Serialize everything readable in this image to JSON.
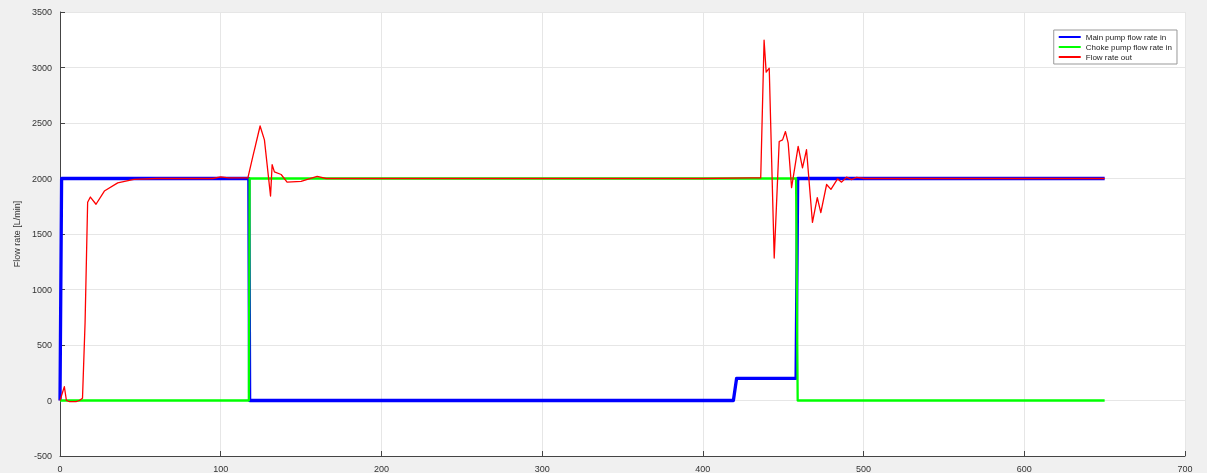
{
  "chart_data": {
    "type": "line",
    "ylabel": "Flow rate [L/min]",
    "xlim": [
      0,
      700
    ],
    "xticks": [
      0,
      100,
      200,
      300,
      400,
      500,
      600,
      700
    ],
    "ylim": [
      -500,
      3500
    ],
    "yticks": [
      -500,
      0,
      500,
      1000,
      1500,
      2000,
      2500,
      3000,
      3500
    ],
    "grid": true,
    "legend": "top right",
    "marker": "none",
    "line_style": "solid",
    "series": [
      {
        "name": "Main pump flow rate in",
        "color": "#0000ff",
        "x": [
          0,
          1,
          117.5,
          118,
          419,
          421,
          458,
          459,
          650
        ],
        "values": [
          0,
          2000,
          2000,
          0,
          0,
          200,
          200,
          2000,
          2000
        ]
      },
      {
        "name": "Choke pump flow rate in",
        "color": "#00ff00",
        "x": [
          0,
          117.5,
          118,
          458,
          459,
          650
        ],
        "values": [
          0,
          0,
          2000,
          2000,
          0,
          0
        ]
      },
      {
        "name": "Flow rate out",
        "color": "#ff0000",
        "x": [
          0,
          2.7,
          4,
          6,
          10,
          12,
          14,
          15.6,
          17.2,
          18.9,
          22.4,
          27.6,
          35.9,
          46,
          60,
          95,
          100,
          105,
          116.9,
          120,
          124.5,
          127.2,
          131,
          132,
          133.4,
          137.6,
          141.3,
          150,
          160,
          165.6,
          200,
          300,
          400,
          430,
          436,
          438.1,
          439.4,
          441.3,
          444.4,
          447.5,
          449.6,
          451.4,
          453.1,
          455.2,
          459.3,
          462,
          464.5,
          468.2,
          471.2,
          473.4,
          477,
          479.7,
          483.8,
          486.3,
          489.4,
          492.5,
          495.6,
          500.6,
          550,
          650
        ],
        "values": [
          0,
          125,
          0,
          -10,
          -10,
          0,
          20,
          700,
          1786,
          1833,
          1768,
          1887,
          1961,
          1993,
          2000,
          2000,
          2015,
          2005,
          2006,
          2199,
          2473,
          2348,
          1842,
          2125,
          2060,
          2036,
          1967,
          1975,
          2020,
          2000,
          2000,
          2000,
          2000,
          2005,
          2005,
          3246,
          2958,
          2994,
          1283,
          2333,
          2348,
          2423,
          2318,
          1917,
          2289,
          2096,
          2259,
          1604,
          1827,
          1693,
          1946,
          1902,
          1997,
          1967,
          2012,
          1990,
          2010,
          2000,
          2000,
          2000
        ]
      }
    ]
  }
}
